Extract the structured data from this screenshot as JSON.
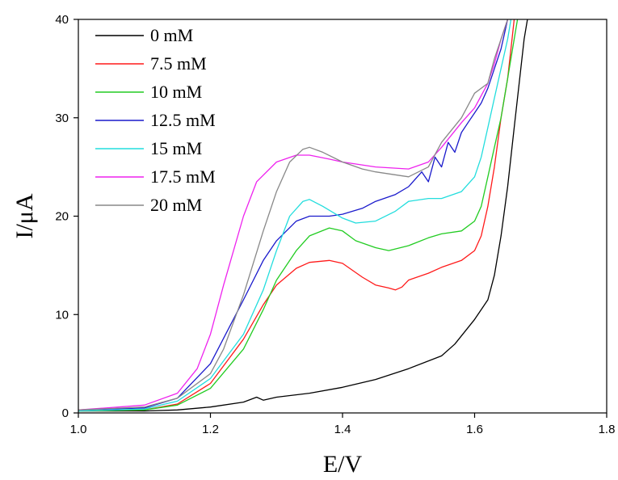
{
  "chart_data": {
    "type": "line",
    "title": "",
    "xlabel": "E/V",
    "ylabel": "I/μA",
    "xlim": [
      1.0,
      1.8
    ],
    "ylim": [
      0,
      40
    ],
    "xticks": [
      "1.0",
      "1.2",
      "1.4",
      "1.6",
      "1.8"
    ],
    "yticks": [
      "0",
      "10",
      "20",
      "30",
      "40"
    ],
    "grid": false,
    "legend_position": "top-left",
    "series": [
      {
        "name": "0 mM",
        "color": "#000000",
        "x": [
          1.0,
          1.1,
          1.15,
          1.2,
          1.25,
          1.27,
          1.28,
          1.3,
          1.35,
          1.4,
          1.45,
          1.5,
          1.55,
          1.57,
          1.6,
          1.62,
          1.63,
          1.64,
          1.65,
          1.66,
          1.67,
          1.675,
          1.68
        ],
        "y": [
          0.2,
          0.2,
          0.3,
          0.6,
          1.1,
          1.6,
          1.3,
          1.6,
          2.0,
          2.6,
          3.4,
          4.5,
          5.8,
          7.0,
          9.5,
          11.5,
          14,
          18,
          23,
          29,
          35,
          38,
          40
        ]
      },
      {
        "name": "7.5 mM",
        "color": "#ff1a1a",
        "x": [
          1.0,
          1.1,
          1.15,
          1.2,
          1.25,
          1.28,
          1.3,
          1.33,
          1.35,
          1.38,
          1.4,
          1.43,
          1.45,
          1.47,
          1.48,
          1.49,
          1.5,
          1.53,
          1.55,
          1.58,
          1.6,
          1.61,
          1.62,
          1.63,
          1.64,
          1.65,
          1.655,
          1.66
        ],
        "y": [
          0.2,
          0.3,
          0.9,
          3.0,
          7.5,
          11.0,
          13.0,
          14.7,
          15.3,
          15.5,
          15.2,
          13.8,
          13.0,
          12.7,
          12.5,
          12.8,
          13.5,
          14.2,
          14.8,
          15.5,
          16.5,
          18,
          21,
          25,
          30,
          34,
          37,
          40
        ]
      },
      {
        "name": "10 mM",
        "color": "#22cc22",
        "x": [
          1.0,
          1.1,
          1.15,
          1.2,
          1.25,
          1.28,
          1.3,
          1.33,
          1.35,
          1.38,
          1.4,
          1.42,
          1.45,
          1.47,
          1.5,
          1.53,
          1.55,
          1.58,
          1.6,
          1.61,
          1.62,
          1.63,
          1.64,
          1.65,
          1.66,
          1.665
        ],
        "y": [
          0.2,
          0.3,
          0.8,
          2.5,
          6.5,
          10.5,
          13.5,
          16.5,
          18.0,
          18.8,
          18.5,
          17.5,
          16.8,
          16.5,
          17.0,
          17.8,
          18.2,
          18.5,
          19.5,
          21,
          24,
          27,
          30,
          34,
          38,
          40
        ]
      },
      {
        "name": "12.5 mM",
        "color": "#1a1acc",
        "x": [
          1.0,
          1.1,
          1.15,
          1.2,
          1.25,
          1.28,
          1.3,
          1.33,
          1.35,
          1.38,
          1.4,
          1.43,
          1.45,
          1.48,
          1.5,
          1.52,
          1.53,
          1.54,
          1.55,
          1.56,
          1.57,
          1.58,
          1.59,
          1.6,
          1.61,
          1.62,
          1.63,
          1.64,
          1.645,
          1.65
        ],
        "y": [
          0.3,
          0.5,
          1.5,
          5.0,
          11.5,
          15.5,
          17.5,
          19.5,
          20.0,
          20.0,
          20.2,
          20.8,
          21.5,
          22.2,
          23.0,
          24.5,
          23.5,
          26.0,
          25.0,
          27.5,
          26.5,
          28.5,
          29.5,
          30.5,
          31.5,
          33.0,
          35.0,
          37.0,
          38.5,
          40
        ]
      },
      {
        "name": "15 mM",
        "color": "#22dddd",
        "x": [
          1.0,
          1.1,
          1.15,
          1.2,
          1.25,
          1.28,
          1.3,
          1.32,
          1.34,
          1.35,
          1.37,
          1.4,
          1.42,
          1.45,
          1.48,
          1.5,
          1.53,
          1.55,
          1.58,
          1.6,
          1.61,
          1.62,
          1.63,
          1.64,
          1.65,
          1.655
        ],
        "y": [
          0.2,
          0.4,
          1.2,
          3.5,
          8.0,
          12.5,
          16.5,
          20.0,
          21.5,
          21.7,
          21.0,
          19.8,
          19.3,
          19.5,
          20.5,
          21.5,
          21.8,
          21.8,
          22.5,
          24.0,
          26.0,
          29.0,
          32.0,
          35.0,
          38.0,
          40
        ]
      },
      {
        "name": "17.5 mM",
        "color": "#ee22ee",
        "x": [
          1.0,
          1.1,
          1.15,
          1.18,
          1.2,
          1.22,
          1.25,
          1.27,
          1.3,
          1.33,
          1.35,
          1.38,
          1.4,
          1.45,
          1.5,
          1.53,
          1.55,
          1.58,
          1.6,
          1.62,
          1.63,
          1.64,
          1.65
        ],
        "y": [
          0.3,
          0.8,
          2.0,
          4.5,
          8.0,
          13.0,
          20.0,
          23.5,
          25.5,
          26.2,
          26.2,
          25.8,
          25.5,
          25.0,
          24.8,
          25.5,
          27.0,
          29.5,
          31.0,
          33.5,
          35.5,
          38.0,
          40
        ]
      },
      {
        "name": "20 mM",
        "color": "#888888",
        "x": [
          1.0,
          1.1,
          1.15,
          1.2,
          1.22,
          1.25,
          1.28,
          1.3,
          1.32,
          1.34,
          1.35,
          1.37,
          1.4,
          1.43,
          1.45,
          1.5,
          1.53,
          1.55,
          1.58,
          1.6,
          1.62,
          1.63,
          1.64,
          1.65
        ],
        "y": [
          0.3,
          0.6,
          1.5,
          4.0,
          6.5,
          12.0,
          18.5,
          22.5,
          25.5,
          26.8,
          27.0,
          26.5,
          25.5,
          24.8,
          24.5,
          24.0,
          25.0,
          27.5,
          30.0,
          32.5,
          33.5,
          36.0,
          38.0,
          40
        ]
      }
    ]
  }
}
